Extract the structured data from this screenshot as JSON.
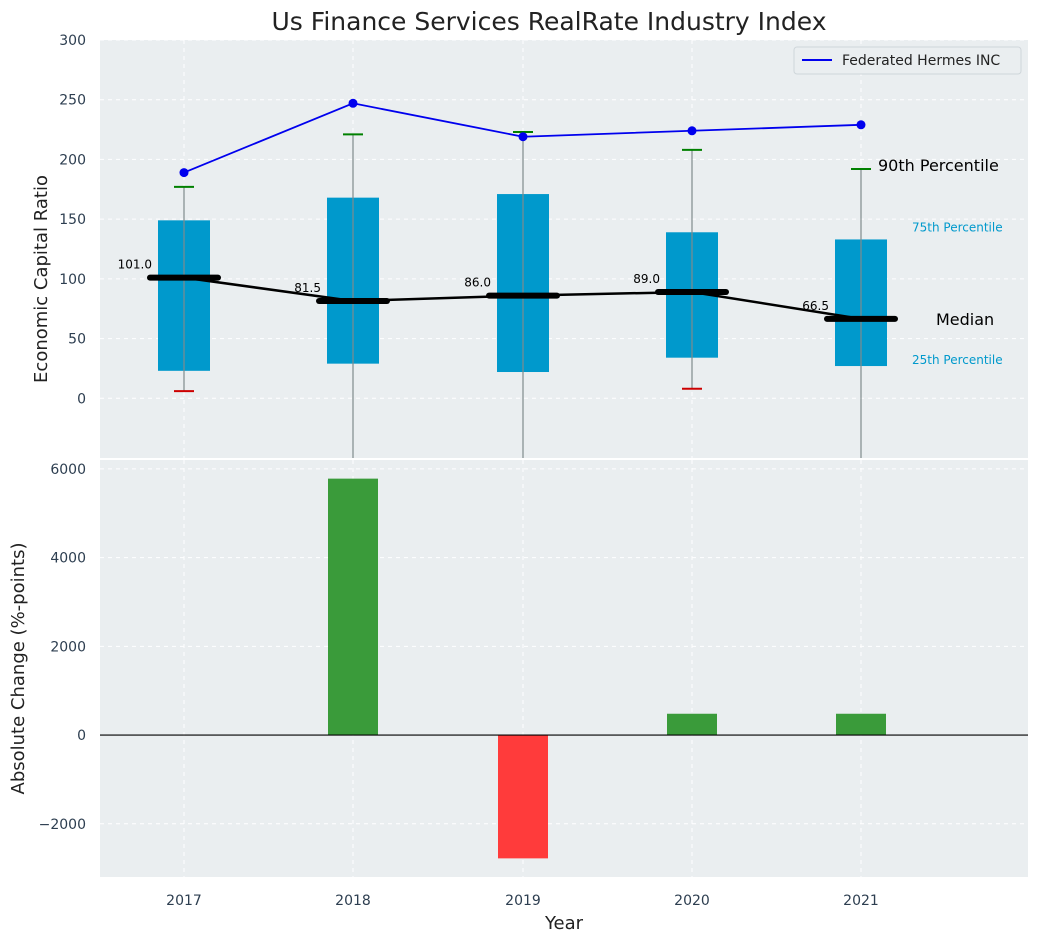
{
  "title": "Us Finance Services RealRate Industry Index",
  "colors": {
    "panel_bg": "#eaeef0",
    "box": "#0099cc",
    "company_line": "#0000ee",
    "median_line": "#000000",
    "whisker_high": "#008000",
    "whisker_low": "#cc0000",
    "bar_positive": "#3a9b3a",
    "bar_negative": "#ff3b3b",
    "percentile_text": "#0099cc"
  },
  "chart_data": [
    {
      "type": "box",
      "panel": "top",
      "ylabel": "Economic Capital Ratio",
      "ylim": [
        -50,
        300
      ],
      "yticks": [
        0,
        50,
        100,
        150,
        200,
        250,
        300
      ],
      "categories": [
        "2017",
        "2018",
        "2019",
        "2020",
        "2021"
      ],
      "grid": true,
      "legend_position": "top-right",
      "percentile_25": [
        23,
        29,
        22,
        34,
        27
      ],
      "percentile_75": [
        149,
        168,
        171,
        139,
        133
      ],
      "percentile_10": [
        6,
        null,
        null,
        8,
        null
      ],
      "percentile_90": [
        177,
        221,
        223,
        208,
        192
      ],
      "median": [
        101.0,
        81.5,
        86.0,
        89.0,
        66.5
      ],
      "median_labels": [
        "101.0",
        "81.5",
        "86.0",
        "89.0",
        "66.5"
      ],
      "series": [
        {
          "name": "Federated Hermes INC",
          "values": [
            189,
            247,
            219,
            224,
            229
          ]
        }
      ],
      "annotations": {
        "p90": "90th Percentile",
        "p75": "75th Percentile",
        "median": "Median",
        "p25": "25th Percentile"
      }
    },
    {
      "type": "bar",
      "panel": "bottom",
      "xlabel": "Year",
      "ylabel": "Absolute Change (%-points)",
      "ylim": [
        -3200,
        6200
      ],
      "yticks": [
        -2000,
        0,
        2000,
        4000,
        6000
      ],
      "ytick_labels": [
        "−2000",
        "0",
        "2000",
        "4000",
        "6000"
      ],
      "categories": [
        "2017",
        "2018",
        "2019",
        "2020",
        "2021"
      ],
      "values": [
        0,
        5780,
        -2780,
        480,
        480
      ],
      "grid": true
    }
  ]
}
